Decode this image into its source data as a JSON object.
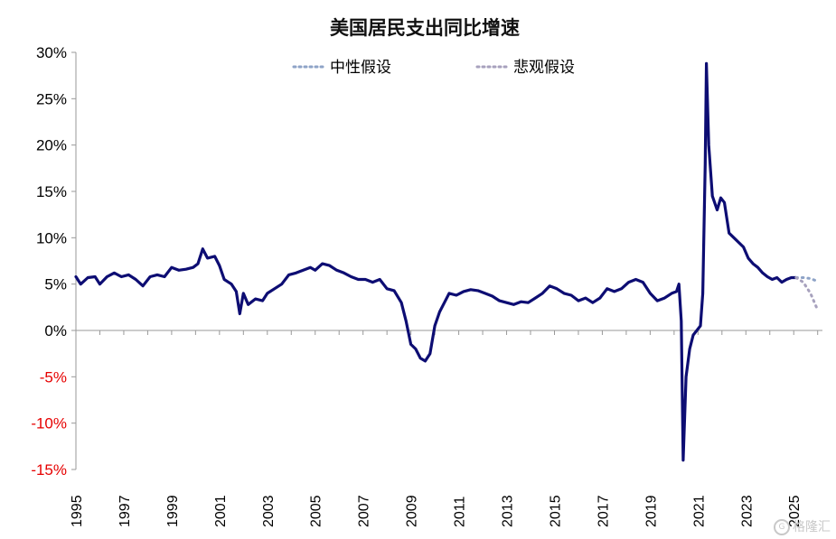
{
  "chart_data": {
    "type": "line",
    "title": "美国居民支出同比增速",
    "ylim": [
      -0.15,
      0.3
    ],
    "yticks": [
      {
        "value": 0.3,
        "label": "30%"
      },
      {
        "value": 0.25,
        "label": "25%"
      },
      {
        "value": 0.2,
        "label": "20%"
      },
      {
        "value": 0.15,
        "label": "15%"
      },
      {
        "value": 0.1,
        "label": "10%"
      },
      {
        "value": 0.05,
        "label": "5%"
      },
      {
        "value": 0.0,
        "label": "0%"
      },
      {
        "value": -0.05,
        "label": "-5%"
      },
      {
        "value": -0.1,
        "label": "-10%"
      },
      {
        "value": -0.15,
        "label": "-15%"
      }
    ],
    "negative_tick_color": "#e60000",
    "positive_tick_color": "#000000",
    "xlim": [
      1995,
      2026.2
    ],
    "xticks": [
      "1995",
      "1997",
      "1999",
      "2001",
      "2003",
      "2005",
      "2007",
      "2009",
      "2011",
      "2013",
      "2015",
      "2017",
      "2019",
      "2021",
      "2023",
      "2025"
    ],
    "grid": false,
    "legend_position": "top",
    "series": [
      {
        "name": "",
        "style": "solid",
        "color": "#0d0d73",
        "points": [
          [
            1995.0,
            0.058
          ],
          [
            1995.2,
            0.05
          ],
          [
            1995.5,
            0.057
          ],
          [
            1995.8,
            0.058
          ],
          [
            1996.0,
            0.05
          ],
          [
            1996.3,
            0.058
          ],
          [
            1996.6,
            0.062
          ],
          [
            1996.9,
            0.058
          ],
          [
            1997.2,
            0.06
          ],
          [
            1997.5,
            0.055
          ],
          [
            1997.8,
            0.048
          ],
          [
            1998.1,
            0.058
          ],
          [
            1998.4,
            0.06
          ],
          [
            1998.7,
            0.058
          ],
          [
            1999.0,
            0.068
          ],
          [
            1999.3,
            0.065
          ],
          [
            1999.6,
            0.066
          ],
          [
            1999.9,
            0.068
          ],
          [
            2000.1,
            0.072
          ],
          [
            2000.3,
            0.088
          ],
          [
            2000.5,
            0.078
          ],
          [
            2000.8,
            0.08
          ],
          [
            2001.0,
            0.07
          ],
          [
            2001.2,
            0.055
          ],
          [
            2001.5,
            0.05
          ],
          [
            2001.7,
            0.042
          ],
          [
            2001.85,
            0.018
          ],
          [
            2002.0,
            0.04
          ],
          [
            2002.2,
            0.028
          ],
          [
            2002.5,
            0.034
          ],
          [
            2002.8,
            0.032
          ],
          [
            2003.0,
            0.04
          ],
          [
            2003.3,
            0.045
          ],
          [
            2003.6,
            0.05
          ],
          [
            2003.9,
            0.06
          ],
          [
            2004.2,
            0.062
          ],
          [
            2004.5,
            0.065
          ],
          [
            2004.8,
            0.068
          ],
          [
            2005.0,
            0.065
          ],
          [
            2005.3,
            0.072
          ],
          [
            2005.6,
            0.07
          ],
          [
            2005.9,
            0.065
          ],
          [
            2006.2,
            0.062
          ],
          [
            2006.5,
            0.058
          ],
          [
            2006.8,
            0.055
          ],
          [
            2007.1,
            0.055
          ],
          [
            2007.4,
            0.052
          ],
          [
            2007.7,
            0.055
          ],
          [
            2008.0,
            0.045
          ],
          [
            2008.3,
            0.043
          ],
          [
            2008.6,
            0.03
          ],
          [
            2008.8,
            0.01
          ],
          [
            2009.0,
            -0.015
          ],
          [
            2009.2,
            -0.02
          ],
          [
            2009.4,
            -0.03
          ],
          [
            2009.6,
            -0.033
          ],
          [
            2009.8,
            -0.025
          ],
          [
            2010.0,
            0.005
          ],
          [
            2010.2,
            0.02
          ],
          [
            2010.4,
            0.03
          ],
          [
            2010.6,
            0.04
          ],
          [
            2010.9,
            0.038
          ],
          [
            2011.2,
            0.042
          ],
          [
            2011.5,
            0.044
          ],
          [
            2011.8,
            0.043
          ],
          [
            2012.1,
            0.04
          ],
          [
            2012.4,
            0.037
          ],
          [
            2012.7,
            0.032
          ],
          [
            2013.0,
            0.03
          ],
          [
            2013.3,
            0.028
          ],
          [
            2013.6,
            0.031
          ],
          [
            2013.9,
            0.03
          ],
          [
            2014.2,
            0.035
          ],
          [
            2014.5,
            0.04
          ],
          [
            2014.8,
            0.048
          ],
          [
            2015.1,
            0.045
          ],
          [
            2015.4,
            0.04
          ],
          [
            2015.7,
            0.038
          ],
          [
            2016.0,
            0.032
          ],
          [
            2016.3,
            0.035
          ],
          [
            2016.6,
            0.03
          ],
          [
            2016.9,
            0.035
          ],
          [
            2017.2,
            0.045
          ],
          [
            2017.5,
            0.042
          ],
          [
            2017.8,
            0.045
          ],
          [
            2018.1,
            0.052
          ],
          [
            2018.4,
            0.055
          ],
          [
            2018.7,
            0.052
          ],
          [
            2019.0,
            0.04
          ],
          [
            2019.3,
            0.032
          ],
          [
            2019.6,
            0.035
          ],
          [
            2019.9,
            0.04
          ],
          [
            2020.1,
            0.042
          ],
          [
            2020.2,
            0.05
          ],
          [
            2020.3,
            0.01
          ],
          [
            2020.38,
            -0.14
          ],
          [
            2020.5,
            -0.05
          ],
          [
            2020.65,
            -0.02
          ],
          [
            2020.8,
            -0.005
          ],
          [
            2020.95,
            0.0
          ],
          [
            2021.1,
            0.005
          ],
          [
            2021.2,
            0.04
          ],
          [
            2021.3,
            0.18
          ],
          [
            2021.35,
            0.288
          ],
          [
            2021.45,
            0.2
          ],
          [
            2021.6,
            0.145
          ],
          [
            2021.8,
            0.13
          ],
          [
            2021.95,
            0.143
          ],
          [
            2022.1,
            0.138
          ],
          [
            2022.3,
            0.105
          ],
          [
            2022.5,
            0.1
          ],
          [
            2022.7,
            0.095
          ],
          [
            2022.9,
            0.09
          ],
          [
            2023.1,
            0.078
          ],
          [
            2023.3,
            0.072
          ],
          [
            2023.5,
            0.068
          ],
          [
            2023.7,
            0.062
          ],
          [
            2023.9,
            0.058
          ],
          [
            2024.1,
            0.055
          ],
          [
            2024.3,
            0.057
          ],
          [
            2024.5,
            0.052
          ],
          [
            2024.7,
            0.055
          ],
          [
            2024.9,
            0.057
          ],
          [
            2025.1,
            0.057
          ]
        ]
      },
      {
        "name": "中性假设",
        "style": "dotted",
        "color": "#8ea3c7",
        "points": [
          [
            2025.1,
            0.057
          ],
          [
            2025.4,
            0.057
          ],
          [
            2025.7,
            0.056
          ],
          [
            2026.0,
            0.053
          ]
        ]
      },
      {
        "name": "悲观假设",
        "style": "dotted",
        "color": "#a7a1bd",
        "points": [
          [
            2025.1,
            0.057
          ],
          [
            2025.4,
            0.052
          ],
          [
            2025.7,
            0.04
          ],
          [
            2026.0,
            0.022
          ]
        ]
      }
    ]
  },
  "watermark": {
    "icon": "G",
    "text": "格隆汇"
  }
}
